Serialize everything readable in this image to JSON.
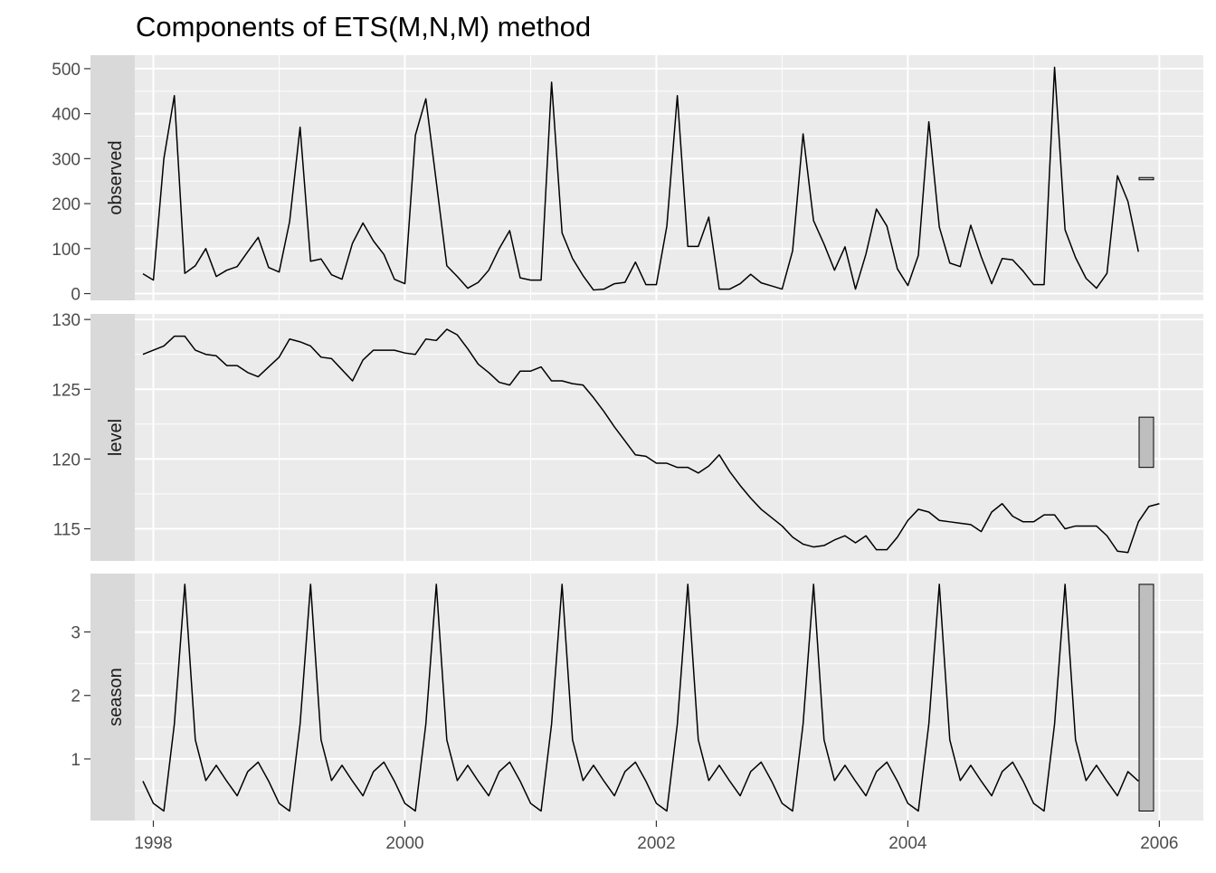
{
  "chart_data": {
    "type": "line",
    "title": "Components of ETS(M,N,M) method",
    "xlabel": "",
    "ylabel": "",
    "grid": true,
    "legend": "none",
    "x_start": 1997.917,
    "x_step_months": 1,
    "xlim": [
      1997.5,
      2006.35
    ],
    "x_ticks": [
      1998,
      2000,
      2002,
      2004,
      2006
    ],
    "x_tick_labels": [
      "1998",
      "2000",
      "2002",
      "2004",
      "2006"
    ],
    "colors": {
      "panel_bg": "#ebebeb",
      "strip_bg": "#d9d9d9",
      "grid": "#ffffff",
      "line": "#000000",
      "range_bar": "#bebebe"
    },
    "panels": [
      {
        "name": "observed",
        "ylim": [
          -15,
          530
        ],
        "y_ticks": [
          0,
          100,
          200,
          300,
          400,
          500
        ],
        "y_tick_labels": [
          "0",
          "100",
          "200",
          "300",
          "400",
          "500"
        ],
        "range_bar": [
          253,
          258
        ],
        "values": [
          44,
          30,
          300,
          440,
          45,
          62,
          100,
          38,
          52,
          60,
          93,
          125,
          58,
          48,
          160,
          370,
          72,
          77,
          42,
          32,
          112,
          157,
          117,
          87,
          32,
          22,
          352,
          433,
          248,
          62,
          38,
          12,
          25,
          52,
          100,
          140,
          35,
          30,
          30,
          470,
          135,
          78,
          40,
          8,
          10,
          22,
          25,
          70,
          20,
          20,
          150,
          440,
          105,
          105,
          170,
          10,
          10,
          22,
          43,
          24,
          17,
          10,
          95,
          355,
          162,
          110,
          52,
          104,
          10,
          88,
          188,
          150,
          55,
          18,
          85,
          382,
          148,
          68,
          60,
          152,
          82,
          22,
          78,
          75,
          50,
          20,
          20,
          503,
          142,
          80,
          34,
          12,
          45,
          262,
          205,
          93
        ]
      },
      {
        "name": "level",
        "ylim": [
          112.7,
          130.4
        ],
        "y_ticks": [
          115,
          120,
          125,
          130
        ],
        "y_tick_labels": [
          "115",
          "120",
          "125",
          "130"
        ],
        "range_bar": [
          119.4,
          123.0
        ],
        "values": [
          127.5,
          127.8,
          128.1,
          128.8,
          128.8,
          127.8,
          127.5,
          127.4,
          126.7,
          126.7,
          126.2,
          125.9,
          126.6,
          127.3,
          128.6,
          128.4,
          128.1,
          127.3,
          127.2,
          126.4,
          125.6,
          127.1,
          127.8,
          127.8,
          127.8,
          127.6,
          127.5,
          128.6,
          128.5,
          129.3,
          128.9,
          127.9,
          126.8,
          126.2,
          125.5,
          125.3,
          126.3,
          126.3,
          126.6,
          125.6,
          125.6,
          125.4,
          125.3,
          124.4,
          123.4,
          122.3,
          121.3,
          120.3,
          120.2,
          119.7,
          119.7,
          119.4,
          119.4,
          119.0,
          119.5,
          120.3,
          119.1,
          118.1,
          117.2,
          116.4,
          115.8,
          115.2,
          114.4,
          113.9,
          113.7,
          113.8,
          114.2,
          114.5,
          114.0,
          114.5,
          113.5,
          113.5,
          114.4,
          115.6,
          116.4,
          116.2,
          115.6,
          115.5,
          115.4,
          115.3,
          114.8,
          116.2,
          116.8,
          115.9,
          115.5,
          115.5,
          116.0,
          116.0,
          115.0,
          115.2,
          115.2,
          115.2,
          114.5,
          113.4,
          113.3,
          115.5,
          116.6,
          116.8
        ]
      },
      {
        "name": "season",
        "ylim": [
          0.03,
          3.92
        ],
        "y_ticks": [
          1,
          2,
          3
        ],
        "y_tick_labels": [
          "1",
          "2",
          "3"
        ],
        "range_bar": [
          0.18,
          3.75
        ],
        "values": [
          0.65,
          0.3,
          0.18,
          1.55,
          3.75,
          1.3,
          0.66,
          0.9,
          0.65,
          0.42,
          0.8,
          0.95,
          0.65,
          0.3,
          0.18,
          1.55,
          3.75,
          1.3,
          0.66,
          0.9,
          0.65,
          0.42,
          0.8,
          0.95,
          0.65,
          0.3,
          0.18,
          1.55,
          3.75,
          1.3,
          0.66,
          0.9,
          0.65,
          0.42,
          0.8,
          0.95,
          0.65,
          0.3,
          0.18,
          1.55,
          3.75,
          1.3,
          0.66,
          0.9,
          0.65,
          0.42,
          0.8,
          0.95,
          0.65,
          0.3,
          0.18,
          1.55,
          3.75,
          1.3,
          0.66,
          0.9,
          0.65,
          0.42,
          0.8,
          0.95,
          0.65,
          0.3,
          0.18,
          1.55,
          3.75,
          1.3,
          0.66,
          0.9,
          0.65,
          0.42,
          0.8,
          0.95,
          0.65,
          0.3,
          0.18,
          1.55,
          3.75,
          1.3,
          0.66,
          0.9,
          0.65,
          0.42,
          0.8,
          0.95,
          0.65,
          0.3,
          0.18,
          1.55,
          3.75,
          1.3,
          0.66,
          0.9,
          0.65,
          0.42,
          0.8,
          0.65
        ]
      }
    ]
  }
}
